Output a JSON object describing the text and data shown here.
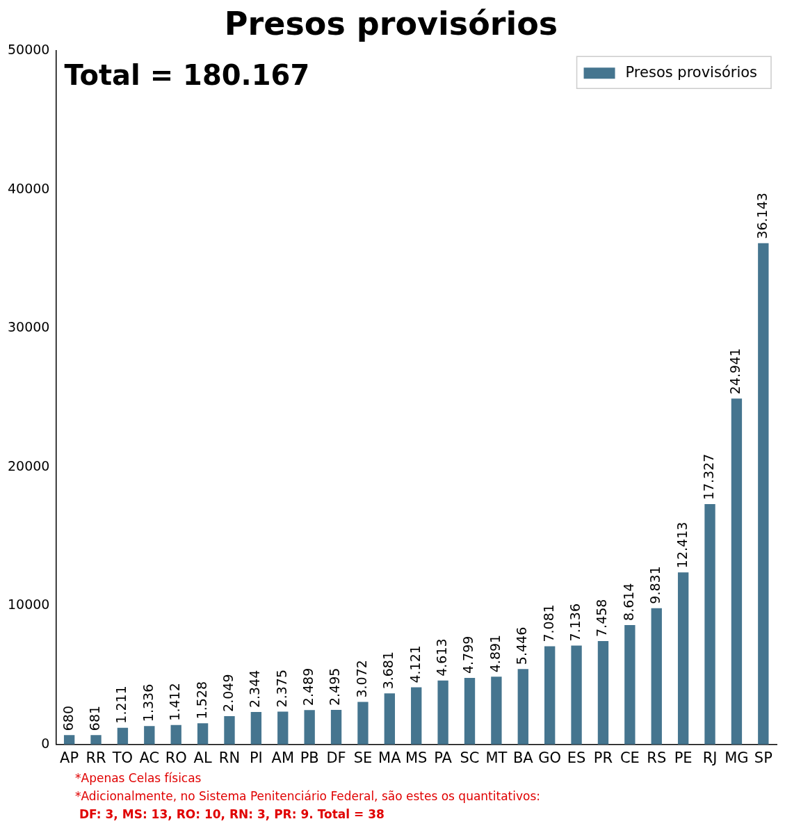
{
  "chart_data": {
    "type": "bar",
    "title": "Presos provisórios",
    "categories": [
      "AP",
      "RR",
      "TO",
      "AC",
      "RO",
      "AL",
      "RN",
      "PI",
      "AM",
      "PB",
      "DF",
      "SE",
      "MA",
      "MS",
      "PA",
      "SC",
      "MT",
      "BA",
      "GO",
      "ES",
      "PR",
      "CE",
      "RS",
      "PE",
      "RJ",
      "MG",
      "SP"
    ],
    "series": [
      {
        "name": "Presos provisórios",
        "color": "#45758f",
        "values": [
          680,
          681,
          1211,
          1336,
          1412,
          1528,
          2049,
          2344,
          2375,
          2489,
          2495,
          3072,
          3681,
          4121,
          4613,
          4799,
          4891,
          5446,
          7081,
          7136,
          7458,
          8614,
          9831,
          12413,
          17327,
          24941,
          36143
        ],
        "value_labels": [
          "680",
          "681",
          "1.211",
          "1.336",
          "1.412",
          "1.528",
          "2.049",
          "2.344",
          "2.375",
          "2.489",
          "2.495",
          "3.072",
          "3.681",
          "4.121",
          "4.613",
          "4.799",
          "4.891",
          "5.446",
          "7.081",
          "7.136",
          "7.458",
          "8.614",
          "9.831",
          "12.413",
          "17.327",
          "24.941",
          "36.143"
        ]
      }
    ],
    "ylim": [
      0,
      50000
    ],
    "yticks": [
      0,
      10000,
      20000,
      30000,
      40000,
      50000
    ],
    "grid": false,
    "legend": "top right",
    "annotations": [
      "Total = 180.167",
      "*Apenas Celas físicas",
      "*Adicionalmente, no Sistema Penitenciário Federal, são estes os quantitativos:",
      "DF: 3, MS: 13, RO: 10, RN: 3, PR: 9. Total = 38"
    ]
  }
}
